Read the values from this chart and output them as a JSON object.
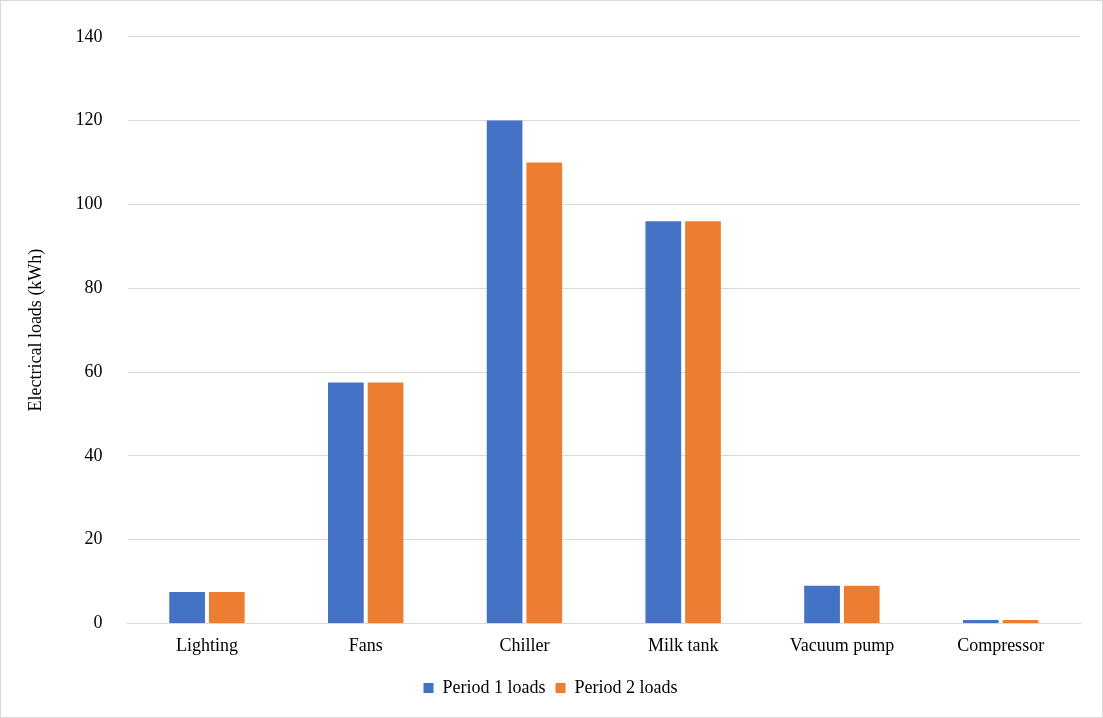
{
  "chart_data": {
    "type": "bar",
    "ylabel": "Electrical loads (kWh)",
    "categories": [
      "Lighting",
      "Fans",
      "Chiller",
      "Milk tank",
      "Vacuum pump",
      "Compressor"
    ],
    "series": [
      {
        "name": "Period 1 loads",
        "color": "#4472c4",
        "values": [
          7.5,
          57.5,
          120,
          96,
          9,
          0.8
        ]
      },
      {
        "name": "Period 2 loads",
        "color": "#ed7d31",
        "values": [
          7.5,
          57.5,
          110,
          96,
          9,
          0.8
        ]
      }
    ],
    "ylim": [
      0,
      140
    ],
    "yticks": [
      0,
      20,
      40,
      60,
      80,
      100,
      120,
      140
    ],
    "grid": "y",
    "legend": "bottom"
  }
}
